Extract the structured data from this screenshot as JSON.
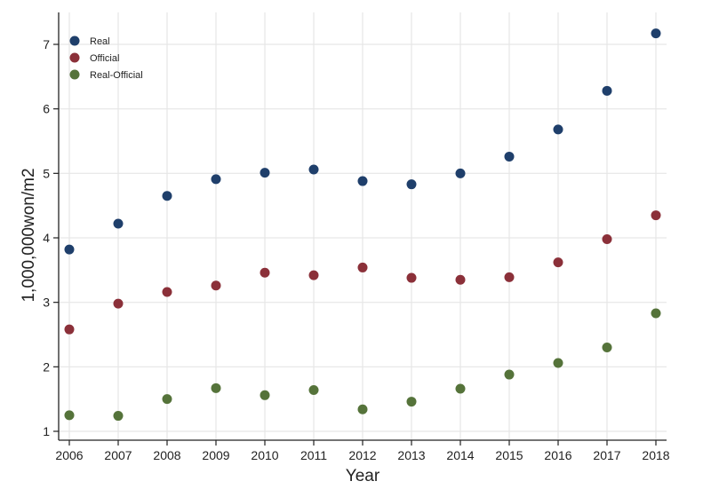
{
  "chart_data": {
    "type": "scatter",
    "title": "",
    "xlabel": "Year",
    "ylabel": "1,000,000won/m2",
    "x": [
      2006,
      2007,
      2008,
      2009,
      2010,
      2011,
      2012,
      2013,
      2014,
      2015,
      2016,
      2017,
      2018
    ],
    "x_ticks": [
      "2006",
      "2007",
      "2008",
      "2009",
      "2010",
      "2011",
      "2012",
      "2013",
      "2014",
      "2015",
      "2016",
      "2017",
      "2018"
    ],
    "y_ticks": [
      "1",
      "2",
      "3",
      "4",
      "5",
      "6",
      "7"
    ],
    "xlim": [
      2006,
      2018
    ],
    "ylim": [
      0.9,
      7.3
    ],
    "grid": true,
    "legend_position": "top-left",
    "series": [
      {
        "name": "Real",
        "color": "#1f3f6b",
        "values": [
          3.82,
          4.22,
          4.65,
          4.91,
          5.01,
          5.06,
          4.88,
          4.83,
          5.0,
          5.26,
          5.68,
          6.28,
          7.17
        ]
      },
      {
        "name": "Official",
        "color": "#8b3039",
        "values": [
          2.58,
          2.98,
          3.16,
          3.26,
          3.46,
          3.42,
          3.54,
          3.38,
          3.35,
          3.39,
          3.62,
          3.98,
          4.35
        ]
      },
      {
        "name": "Real-Official",
        "color": "#55733a",
        "values": [
          1.25,
          1.24,
          1.5,
          1.67,
          1.56,
          1.64,
          1.34,
          1.46,
          1.66,
          1.88,
          2.06,
          2.3,
          2.83
        ]
      }
    ]
  }
}
